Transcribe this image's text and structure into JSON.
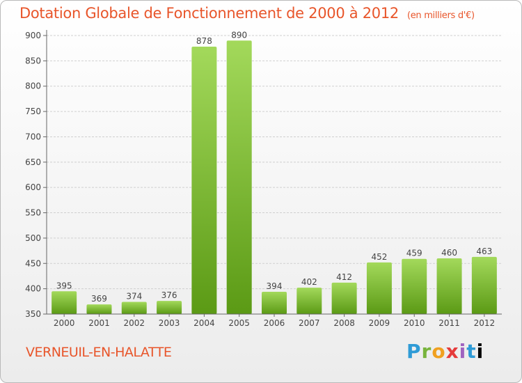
{
  "title": "Dotation Globale de Fonctionnement de 2000 à 2012",
  "unit_note": "(en milliers d'€)",
  "place_name": "VERNEUIL-EN-HALATTE",
  "logo_text": "Proxiti",
  "colors": {
    "title": "#e8552a",
    "bar_light": "#9fd555",
    "bar_dark": "#5b9a15",
    "grid": "#cfcfcf"
  },
  "chart_data": {
    "type": "bar",
    "categories": [
      "2000",
      "2001",
      "2002",
      "2003",
      "2004",
      "2005",
      "2006",
      "2007",
      "2008",
      "2009",
      "2010",
      "2011",
      "2012"
    ],
    "values": [
      395,
      369,
      374,
      376,
      878,
      890,
      394,
      402,
      412,
      452,
      459,
      460,
      463
    ],
    "ylim": [
      350,
      900
    ],
    "yticks": [
      350,
      400,
      450,
      500,
      550,
      600,
      650,
      700,
      750,
      800,
      850,
      900
    ],
    "grid": true,
    "legend": "none"
  }
}
